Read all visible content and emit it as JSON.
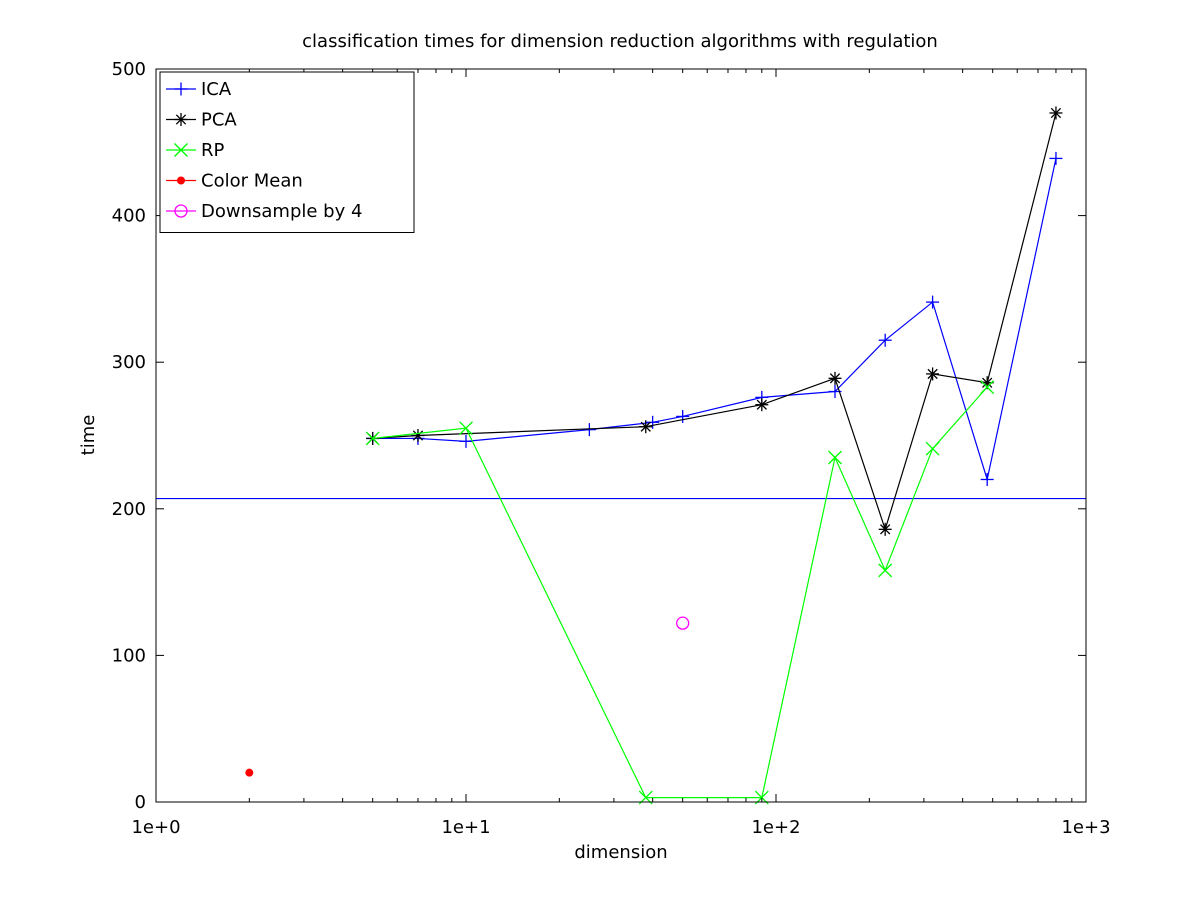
{
  "chart_data": {
    "type": "line",
    "title": "classification times for dimension reduction algorithms with regulation",
    "xlabel": "dimension",
    "ylabel": "time",
    "xscale": "log",
    "xlim": [
      1,
      1000
    ],
    "ylim": [
      0,
      500
    ],
    "xticks": [
      1,
      10,
      100,
      1000
    ],
    "xtick_labels": [
      "1e+0",
      "1e+1",
      "1e+2",
      "1e+3"
    ],
    "yticks": [
      0,
      100,
      200,
      300,
      400,
      500
    ],
    "ytick_labels": [
      "0",
      "100",
      "200",
      "300",
      "400",
      "500"
    ],
    "grid": false,
    "legend_position": "top-left",
    "series": [
      {
        "name": "ICA",
        "color": "#0000ff",
        "marker": "plus",
        "line": true,
        "x": [
          5,
          7,
          10,
          25,
          40,
          50,
          90,
          155,
          225,
          320,
          480,
          800
        ],
        "y": [
          248,
          248,
          246,
          254,
          259,
          263,
          276,
          280,
          315,
          341,
          220,
          439
        ]
      },
      {
        "name": "PCA",
        "color": "#000000",
        "marker": "star",
        "line": true,
        "x": [
          5,
          7,
          38,
          90,
          155,
          225,
          320,
          480,
          800
        ],
        "y": [
          248,
          250,
          256,
          271,
          289,
          186,
          292,
          286,
          470
        ]
      },
      {
        "name": "RP",
        "color": "#00ff00",
        "marker": "x",
        "line": true,
        "x": [
          5,
          10,
          38,
          90,
          155,
          225,
          320,
          480
        ],
        "y": [
          248,
          255,
          3,
          3,
          235,
          158,
          241,
          283
        ]
      },
      {
        "name": "Color Mean",
        "color": "#ff0000",
        "marker": "dot",
        "line": false,
        "x": [
          2
        ],
        "y": [
          20
        ]
      },
      {
        "name": "Downsample by 4",
        "color": "#ff00ff",
        "marker": "circle",
        "line": false,
        "x": [
          50
        ],
        "y": [
          122
        ]
      }
    ],
    "reference_lines": [
      {
        "type": "horizontal",
        "y": 207,
        "color": "#0000ff"
      }
    ]
  }
}
